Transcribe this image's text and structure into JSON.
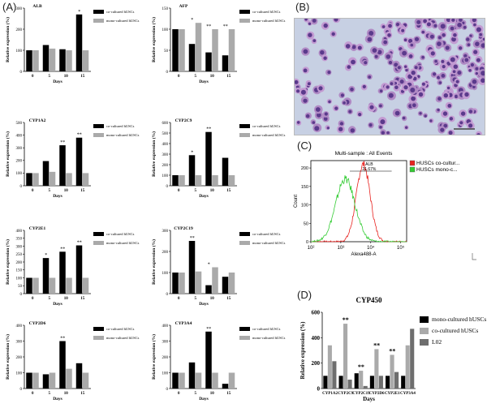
{
  "panels": {
    "a": "(A)",
    "b": "(B)",
    "c": "(C)",
    "d": "(D)"
  },
  "colors": {
    "co": "#000000",
    "mono": "#aaaaaa",
    "l02": "#6e6e6e",
    "ctrl": "#e8221f",
    "green": "#33cc33"
  },
  "chart_data": [
    {
      "id": "ALB",
      "type": "bar",
      "title": "ALB",
      "ylabel": "Relative expression (%)",
      "xlabel": "Days",
      "categories": [
        "0",
        "5",
        "10",
        "15"
      ],
      "ylim": [
        0,
        300
      ],
      "yticks": [
        0,
        100,
        200,
        300
      ],
      "legend": [
        "co-cultured hUSCs",
        "mono-cultured hUSCs"
      ],
      "series": [
        {
          "name": "co-cultured hUSCs",
          "values": [
            100,
            125,
            105,
            270
          ]
        },
        {
          "name": "mono-cultured hUSCs",
          "values": [
            100,
            108,
            100,
            100
          ]
        }
      ],
      "marks": [
        "",
        "",
        "",
        "*"
      ]
    },
    {
      "id": "AFP",
      "type": "bar",
      "title": "AFP",
      "ylabel": "Relative expression (%)",
      "xlabel": "Days",
      "categories": [
        "0",
        "5",
        "10",
        "15"
      ],
      "ylim": [
        0,
        150
      ],
      "yticks": [
        0,
        50,
        100,
        150
      ],
      "legend": [
        "co-cultured hUSCs",
        "mono-cultured hUSCs"
      ],
      "series": [
        {
          "name": "co-cultured hUSCs",
          "values": [
            100,
            65,
            45,
            38
          ]
        },
        {
          "name": "mono-cultured hUSCs",
          "values": [
            100,
            115,
            100,
            100
          ]
        }
      ],
      "marks": [
        "",
        "*",
        "**",
        "**"
      ]
    },
    {
      "id": "CYP1A2",
      "type": "bar",
      "title": "CYP1A2",
      "ylabel": "Relative expression (%)",
      "xlabel": "Days",
      "categories": [
        "0",
        "5",
        "10",
        "15"
      ],
      "ylim": [
        0,
        500
      ],
      "yticks": [
        0,
        100,
        200,
        300,
        400,
        500
      ],
      "legend": [
        "co-cultured hUSCs",
        "mono-cultured hUSCs"
      ],
      "series": [
        {
          "name": "co-cultured hUSCs",
          "values": [
            100,
            195,
            320,
            380
          ]
        },
        {
          "name": "mono-cultured hUSCs",
          "values": [
            100,
            110,
            100,
            100
          ]
        }
      ],
      "marks": [
        "",
        "",
        "**",
        "**"
      ]
    },
    {
      "id": "CYP2C9",
      "type": "bar",
      "title": "CYP2C9",
      "ylabel": "Relative expression (%)",
      "xlabel": "Days",
      "categories": [
        "0",
        "5",
        "10",
        "15"
      ],
      "ylim": [
        0,
        600
      ],
      "yticks": [
        0,
        100,
        200,
        300,
        400,
        500,
        600
      ],
      "legend": [
        "co-cultured hUSCs",
        "mono-cultured hUSCs"
      ],
      "series": [
        {
          "name": "co-cultured hUSCs",
          "values": [
            100,
            290,
            510,
            265
          ]
        },
        {
          "name": "mono-cultured hUSCs",
          "values": [
            100,
            100,
            100,
            100
          ]
        }
      ],
      "marks": [
        "",
        "*",
        "**",
        ""
      ]
    },
    {
      "id": "CYP2E1",
      "type": "bar",
      "title": "CYP2E1",
      "ylabel": "Relative expression (%)",
      "xlabel": "Days",
      "categories": [
        "0",
        "5",
        "10",
        "15"
      ],
      "ylim": [
        0,
        400
      ],
      "yticks": [
        0,
        50,
        100,
        150,
        200,
        250,
        300,
        350,
        400
      ],
      "legend": [
        "co-cultured hUSCs",
        "mono-cultured hUSCs"
      ],
      "series": [
        {
          "name": "co-cultured hUSCs",
          "values": [
            100,
            225,
            265,
            305
          ]
        },
        {
          "name": "mono-cultured hUSCs",
          "values": [
            100,
            100,
            100,
            100
          ]
        }
      ],
      "marks": [
        "",
        "*",
        "**",
        "**"
      ]
    },
    {
      "id": "CYP2C19",
      "type": "bar",
      "title": "CYP2C19",
      "ylabel": "Relative expression (%)",
      "xlabel": "Days",
      "categories": [
        "0",
        "5",
        "10",
        "15"
      ],
      "ylim": [
        0,
        300
      ],
      "yticks": [
        0,
        100,
        200,
        300
      ],
      "legend": [
        "co-cultured hUSCs",
        "mono-cultured hUSCs"
      ],
      "series": [
        {
          "name": "co-cultured hUSCs",
          "values": [
            100,
            250,
            40,
            80
          ]
        },
        {
          "name": "mono-cultured hUSCs",
          "values": [
            100,
            105,
            125,
            100
          ]
        }
      ],
      "marks": [
        "",
        "**",
        "*",
        ""
      ]
    },
    {
      "id": "CYP2D6",
      "type": "bar",
      "title": "CYP2D6",
      "ylabel": "Relative expression (%)",
      "xlabel": "Days",
      "categories": [
        "0",
        "5",
        "10",
        "15"
      ],
      "ylim": [
        0,
        400
      ],
      "yticks": [
        0,
        100,
        200,
        300,
        400
      ],
      "legend": [
        "co-cultured hUSCs",
        "mono-cultured hUSCs"
      ],
      "series": [
        {
          "name": "co-cultured hUSCs",
          "values": [
            100,
            90,
            300,
            160
          ]
        },
        {
          "name": "mono-cultured hUSCs",
          "values": [
            100,
            100,
            125,
            100
          ]
        }
      ],
      "marks": [
        "",
        "",
        "**",
        ""
      ]
    },
    {
      "id": "CYP3A4",
      "type": "bar",
      "title": "CYP3A4",
      "ylabel": "Relative expression (%)",
      "xlabel": "Days",
      "categories": [
        "0",
        "5",
        "10",
        "15"
      ],
      "ylim": [
        0,
        400
      ],
      "yticks": [
        0,
        100,
        200,
        300,
        400
      ],
      "legend": [
        "co-cultured hUSCs",
        "mono-cultured hUSCs"
      ],
      "series": [
        {
          "name": "co-cultured hUSCs",
          "values": [
            100,
            165,
            360,
            30
          ]
        },
        {
          "name": "mono-cultured hUSCs",
          "values": [
            100,
            100,
            100,
            100
          ]
        }
      ],
      "marks": [
        "",
        "",
        "**",
        ""
      ]
    },
    {
      "id": "CYP450",
      "type": "bar",
      "title": "CYP450",
      "ylabel": "Relative expression (%)",
      "xlabel": "Days",
      "categories": [
        "CYP1A2",
        "CYP2C9",
        "CYP2C19",
        "CYP2D6",
        "CYP2E1",
        "CYP3A4"
      ],
      "ylim": [
        0,
        600
      ],
      "yticks": [
        0,
        200,
        400,
        600
      ],
      "legend": [
        "mono-cultured hUSCs",
        "co-cultured hUSCs",
        "L02"
      ],
      "series": [
        {
          "name": "mono-cultured hUSCs",
          "values": [
            100,
            100,
            120,
            100,
            100,
            100
          ]
        },
        {
          "name": "co-cultured hUSCs",
          "values": [
            340,
            510,
            140,
            310,
            265,
            340
          ]
        },
        {
          "name": "L02",
          "values": [
            215,
            70,
            20,
            100,
            130,
            470
          ]
        }
      ],
      "marks": [
        "",
        "**",
        "**",
        "**",
        "**",
        ""
      ]
    },
    {
      "id": "flow",
      "type": "histogram",
      "title": "Multi-sample : All Events",
      "xlabel": "Alexa488-A",
      "ylabel": "Count",
      "x_ticks": [
        "10²",
        "10³",
        "10⁴",
        "10⁵"
      ],
      "y_ticks": [
        0,
        50,
        100,
        150,
        200
      ],
      "ylim": [
        0,
        220
      ],
      "annotation_label": "ALB",
      "annotation_value": "21.67%",
      "legend": [
        "HUSCs co-cultur...",
        "HUSCs mono-c..."
      ],
      "series": [
        {
          "name": "HUSCs co-cultured",
          "peak_log10": 3.75,
          "peak_count": 210,
          "sigma": 0.23
        },
        {
          "name": "HUSCs mono-cultured",
          "peak_log10": 3.15,
          "peak_count": 170,
          "sigma": 0.32
        }
      ]
    }
  ]
}
